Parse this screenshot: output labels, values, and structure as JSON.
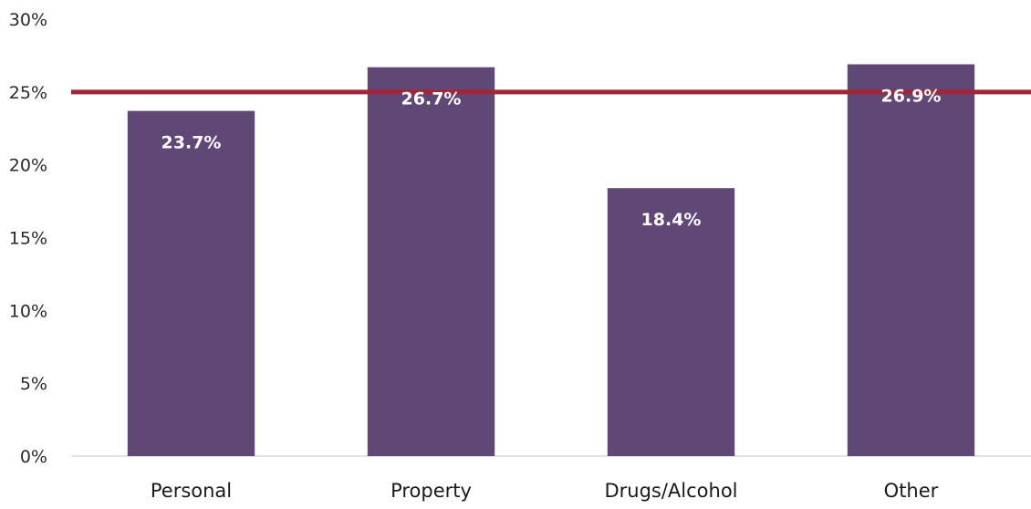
{
  "chart_data": {
    "type": "bar",
    "categories": [
      "Personal",
      "Property",
      "Drugs/Alcohol",
      "Other"
    ],
    "values": [
      23.7,
      26.7,
      18.4,
      26.9
    ],
    "data_labels": [
      "23.7%",
      "26.7%",
      "18.4%",
      "26.9%"
    ],
    "ylim": [
      0,
      30
    ],
    "yticks": [
      0,
      5,
      10,
      15,
      20,
      25,
      30
    ],
    "ytick_labels": [
      "0%",
      "5%",
      "10%",
      "15%",
      "20%",
      "25%",
      "30%"
    ],
    "reference_line": 25,
    "title": "",
    "xlabel": "",
    "ylabel": "",
    "grid": false,
    "legend": "none",
    "colors": {
      "bar": "#5f4776",
      "reference_line": "#a32638",
      "axis": "#d9d9d9"
    }
  }
}
